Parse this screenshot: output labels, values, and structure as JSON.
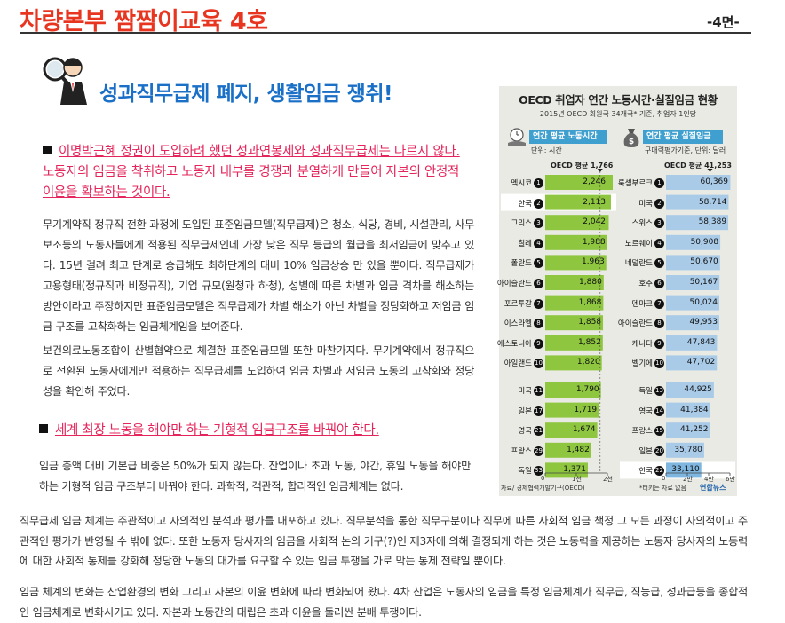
{
  "header": {
    "title": "차량본부 짬짬이교육 4호",
    "page": "-4면-"
  },
  "main_title": "성과직무급제 폐지, 생활임금 쟁취!",
  "highlight1": "이명박근혜 정권이 도입하려 했던 성과연봉제와 성과직무급제는 다르지 않다. 노동자의 임금을 착취하고 노동자 내부를 경쟁과 분열하게 만들어 자본의 안정적 이윤을 확보하는 것이다.",
  "para1": "무기계약직 정규직 전환 과정에 도입된 표준임금모델(직무급제)은 청소, 식당, 경비, 시설관리, 사무보조등의 노동자들에게 적용된 직무급제인데 가장 낮은 직무 등급의 월급을 최저임금에 맞추고 있다. 15년 걸려 최고 단계로 승급해도 최하단계의 대비 10% 임금상승 만 있을 뿐이다. 직무급제가 고용형태(정규직과 비정규직), 기업 규모(원청과 하청), 성별에 따른 차별과 임금 격차를 해소하는 방안이라고 주장하지만 표준임금모델은 직무급제가 차별 해소가 아닌 차별을 정당화하고 저임금 임금 구조를 고착화하는 임금체계임을 보여준다.",
  "para2": "보건의료노동조합이 산별협약으로 체결한 표준임금모델 또한 마찬가지다. 무기계약에서 정규직으로 전환된 노동자에게만 적용하는 직무급제를 도입하여 임금 차별과 저임금 노동의 고착화와 정당성을 확인해 주었다.",
  "highlight2": "세계 최장 노동을 해야만 하는 기형적 임금구조를 바꿔야 한다.",
  "para3": "임금 총액 대비 기본급 비중은 50%가 되지 않는다. 잔업이나 초과 노동, 야간, 휴일 노동을 해야만 하는 기형적 임금 구조부터 바꿔야 한다. 과학적, 객관적, 합리적인 임금체계는 없다.",
  "para4": "직무급제 임금 체계는 주관적이고 자의적인 분석과 평가를 내포하고 있다. 직무분석을 통한 직무구분이나 직무에 따른 사회적 임금 책정 그 모든 과정이 자의적이고 주관적인 평가가 반영될 수 밖에 없다. 또한 노동자 당사자의 임금을 사회적 논의 기구(?)인 제3자에 의해 결정되게 하는 것은 노동력을 제공하는 노동자 당사자의 노동력에 대한 사회적 통제를 강화해 정당한 노동의 대가를 요구할 수 있는 임금 투쟁을 가로 막는 통제 전략일 뿐이다.",
  "para5": "임금 체계의 변화는 산업환경의 변화 그리고 자본의 이윤 변화에 따라 변화되어 왔다. 4차 산업은 노동자의 임금을 특정 임금체계가 직무급, 직능급, 성과급등을 종합적인 임금체계로 변화시키고 있다. 자본과 노동간의 대립은 초과 이윤을 둘러싼 분배 투쟁이다.",
  "chart_data": {
    "type": "bar",
    "title": "OECD 취업자 연간 노동시간·실질임금 현황",
    "subtitle": "2015년 OECD 회원국 34개국* 기준, 취업자 1인당",
    "source": "자료/ 경제협력개발기구(OECD)",
    "footnote": "*터키는 자료 없음",
    "logo": "연합뉴스",
    "panels": [
      {
        "name": "연간 평균 노동시간",
        "unit": "단위: 시간",
        "average_label": "OECD 평균 1,766",
        "average": 1766,
        "xlim": [
          0,
          2000
        ],
        "ticks": [
          "0",
          "1천",
          "2천"
        ],
        "color": "#8ec63f",
        "highlight": "한국",
        "rows": [
          {
            "country": "멕시코",
            "rank": "1",
            "value": 2246,
            "label": "2,246"
          },
          {
            "country": "한국",
            "rank": "2",
            "value": 2113,
            "label": "2,113"
          },
          {
            "country": "그리스",
            "rank": "3",
            "value": 2042,
            "label": "2,042"
          },
          {
            "country": "칠레",
            "rank": "4",
            "value": 1988,
            "label": "1,988"
          },
          {
            "country": "폴란드",
            "rank": "5",
            "value": 1963,
            "label": "1,963"
          },
          {
            "country": "아이슬란드",
            "rank": "6",
            "value": 1880,
            "label": "1,880"
          },
          {
            "country": "포르투갈",
            "rank": "7",
            "value": 1868,
            "label": "1,868"
          },
          {
            "country": "이스라엘",
            "rank": "8",
            "value": 1858,
            "label": "1,858"
          },
          {
            "country": "에스토니아",
            "rank": "9",
            "value": 1852,
            "label": "1,852"
          },
          {
            "country": "아일랜드",
            "rank": "10",
            "value": 1820,
            "label": "1,820"
          },
          {
            "country": "미국",
            "rank": "11",
            "value": 1790,
            "label": "1,790"
          },
          {
            "country": "일본",
            "rank": "17",
            "value": 1719,
            "label": "1,719"
          },
          {
            "country": "영국",
            "rank": "21",
            "value": 1674,
            "label": "1,674"
          },
          {
            "country": "프랑스",
            "rank": "29",
            "value": 1482,
            "label": "1,482"
          },
          {
            "country": "독일",
            "rank": "33",
            "value": 1371,
            "label": "1,371"
          }
        ]
      },
      {
        "name": "연간 평균 실질임금",
        "unit": "구매력평가기준, 단위: 달러",
        "average_label": "OECD 평균 41,253",
        "average": 41253,
        "xlim": [
          0,
          60000
        ],
        "ticks": [
          "0",
          "2만",
          "4만",
          "6만"
        ],
        "color": "#a9cbe8",
        "highlight": "한국",
        "rows": [
          {
            "country": "룩셈부르크",
            "rank": "1",
            "value": 60369,
            "label": "60,369"
          },
          {
            "country": "미국",
            "rank": "2",
            "value": 58714,
            "label": "58,714"
          },
          {
            "country": "스위스",
            "rank": "3",
            "value": 58389,
            "label": "58,389"
          },
          {
            "country": "노르웨이",
            "rank": "4",
            "value": 50908,
            "label": "50,908"
          },
          {
            "country": "네덜란드",
            "rank": "5",
            "value": 50670,
            "label": "50,670"
          },
          {
            "country": "호주",
            "rank": "6",
            "value": 50167,
            "label": "50,167"
          },
          {
            "country": "덴마크",
            "rank": "7",
            "value": 50024,
            "label": "50,024"
          },
          {
            "country": "아이슬란드",
            "rank": "8",
            "value": 49953,
            "label": "49,953"
          },
          {
            "country": "캐나다",
            "rank": "9",
            "value": 47843,
            "label": "47,843"
          },
          {
            "country": "벨기에",
            "rank": "10",
            "value": 47702,
            "label": "47,702"
          },
          {
            "country": "독일",
            "rank": "13",
            "value": 44925,
            "label": "44,925"
          },
          {
            "country": "영국",
            "rank": "14",
            "value": 41384,
            "label": "41,384"
          },
          {
            "country": "프랑스",
            "rank": "15",
            "value": 41252,
            "label": "41,252"
          },
          {
            "country": "일본",
            "rank": "20",
            "value": 35780,
            "label": "35,780"
          },
          {
            "country": "한국",
            "rank": "22",
            "value": 33110,
            "label": "33,110"
          }
        ]
      }
    ]
  }
}
